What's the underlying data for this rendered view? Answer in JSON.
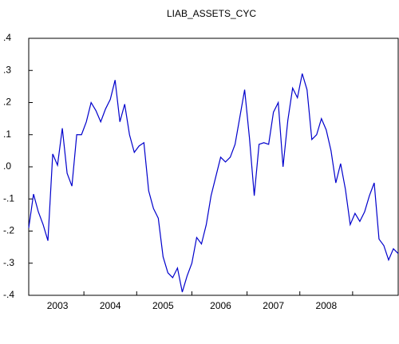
{
  "chart_data": {
    "type": "line",
    "title": "LIAB_ASSETS_CYC",
    "categories": [
      null,
      null,
      null,
      null,
      null,
      null,
      "2003",
      null,
      null,
      null,
      null,
      null,
      null,
      null,
      null,
      null,
      null,
      "2004",
      null,
      null,
      null,
      null,
      null,
      null,
      null,
      null,
      null,
      null,
      "2005",
      null,
      null,
      null,
      null,
      null,
      null,
      null,
      null,
      null,
      null,
      null,
      "2006",
      null,
      null,
      null,
      null,
      null,
      null,
      null,
      null,
      null,
      null,
      "2007",
      null,
      null,
      null,
      null,
      null,
      null,
      null,
      null,
      null,
      null,
      "2008",
      null,
      null,
      null,
      null,
      null,
      null,
      null,
      null,
      null,
      null,
      null,
      null,
      null,
      null,
      null
    ],
    "series": [
      {
        "name": "LIAB_ASSETS_CYC",
        "color": "#0000cc",
        "values": [
          -0.19,
          -0.085,
          -0.14,
          -0.18,
          -0.23,
          0.04,
          0.005,
          0.12,
          -0.02,
          -0.06,
          0.1,
          0.1,
          0.14,
          0.2,
          0.175,
          0.14,
          0.18,
          0.21,
          0.27,
          0.14,
          0.195,
          0.1,
          0.045,
          0.065,
          0.075,
          -0.075,
          -0.13,
          -0.16,
          -0.28,
          -0.33,
          -0.345,
          -0.315,
          -0.39,
          -0.34,
          -0.3,
          -0.22,
          -0.24,
          -0.18,
          -0.09,
          -0.03,
          0.03,
          0.015,
          0.03,
          0.07,
          0.155,
          0.24,
          0.09,
          -0.09,
          0.07,
          0.075,
          0.07,
          0.17,
          0.2,
          0.0,
          0.145,
          0.245,
          0.215,
          0.29,
          0.24,
          0.085,
          0.1,
          0.15,
          0.115,
          0.05,
          -0.05,
          0.01,
          -0.07,
          -0.18,
          -0.145,
          -0.17,
          -0.14,
          -0.09,
          -0.05,
          -0.225,
          -0.245,
          -0.29,
          -0.255,
          -0.27
        ]
      }
    ],
    "ylim": [
      -0.4,
      0.4
    ],
    "yticks": [
      {
        "value": -0.4,
        "label": "-.4"
      },
      {
        "value": -0.3,
        "label": "-.3"
      },
      {
        "value": -0.2,
        "label": "-.2"
      },
      {
        "value": -0.1,
        "label": "-.1"
      },
      {
        "value": 0,
        "label": ".0"
      },
      {
        "value": 0.1,
        "label": ".1"
      },
      {
        "value": 0.2,
        "label": ".2"
      },
      {
        "value": 0.3,
        "label": ".3"
      },
      {
        "value": 0.4,
        "label": ".4"
      }
    ]
  }
}
